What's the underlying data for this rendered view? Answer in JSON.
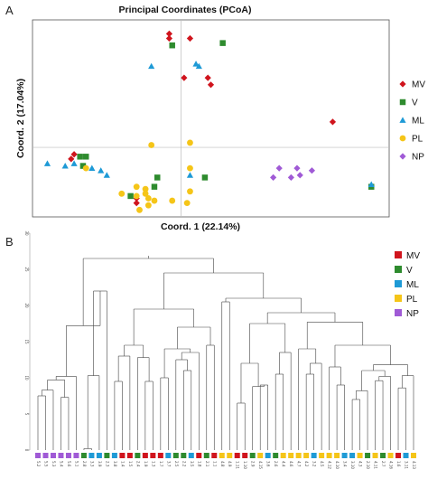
{
  "panel_a": {
    "letter": "A",
    "colors": {
      "MV": "#d0141d",
      "V": "#2e8b2e",
      "ML": "#1e9ad6",
      "PL": "#f5c518",
      "NP": "#a05ad6"
    },
    "chart_data": {
      "type": "scatter",
      "title": "Principal Coordinates (PCoA)",
      "xlabel": "Coord. 1 (22.14%)",
      "ylabel": "Coord. 2 (17.04%)",
      "xlim": [
        -0.5,
        0.7
      ],
      "ylim": [
        -0.3,
        0.55
      ],
      "grid": false,
      "legend_position": "right",
      "series": [
        {
          "name": "MV",
          "marker": "diamond",
          "points": [
            [
              -0.04,
              0.49
            ],
            [
              -0.04,
              0.47
            ],
            [
              0.03,
              0.47
            ],
            [
              0.01,
              0.3
            ],
            [
              0.09,
              0.3
            ],
            [
              0.1,
              0.27
            ],
            [
              0.51,
              0.11
            ],
            [
              -0.36,
              -0.03
            ],
            [
              -0.37,
              -0.05
            ],
            [
              -0.15,
              -0.22
            ],
            [
              -0.15,
              -0.24
            ]
          ]
        },
        {
          "name": "V",
          "marker": "square",
          "points": [
            [
              -0.03,
              0.44
            ],
            [
              0.14,
              0.45
            ],
            [
              -0.34,
              -0.04
            ],
            [
              -0.32,
              -0.04
            ],
            [
              -0.33,
              -0.08
            ],
            [
              -0.17,
              -0.21
            ],
            [
              -0.09,
              -0.17
            ],
            [
              -0.08,
              -0.13
            ],
            [
              0.08,
              -0.13
            ],
            [
              0.64,
              -0.17
            ]
          ]
        },
        {
          "name": "ML",
          "marker": "triangle",
          "points": [
            [
              -0.1,
              0.35
            ],
            [
              0.05,
              0.36
            ],
            [
              0.06,
              0.35
            ],
            [
              -0.45,
              -0.07
            ],
            [
              -0.39,
              -0.08
            ],
            [
              -0.36,
              -0.07
            ],
            [
              -0.3,
              -0.09
            ],
            [
              -0.27,
              -0.1
            ],
            [
              -0.25,
              -0.12
            ],
            [
              0.03,
              -0.12
            ],
            [
              0.64,
              -0.16
            ]
          ]
        },
        {
          "name": "PL",
          "marker": "circle",
          "points": [
            [
              -0.1,
              0.01
            ],
            [
              0.03,
              0.02
            ],
            [
              -0.32,
              -0.09
            ],
            [
              0.03,
              -0.09
            ],
            [
              -0.2,
              -0.2
            ],
            [
              -0.15,
              -0.17
            ],
            [
              -0.12,
              -0.18
            ],
            [
              -0.12,
              -0.2
            ],
            [
              -0.15,
              -0.21
            ],
            [
              -0.11,
              -0.22
            ],
            [
              -0.09,
              -0.23
            ],
            [
              -0.03,
              -0.23
            ],
            [
              0.03,
              -0.19
            ],
            [
              0.02,
              -0.24
            ],
            [
              -0.11,
              -0.25
            ],
            [
              -0.14,
              -0.27
            ]
          ]
        },
        {
          "name": "NP",
          "marker": "diamond",
          "points": [
            [
              0.33,
              -0.09
            ],
            [
              0.39,
              -0.09
            ],
            [
              0.44,
              -0.1
            ],
            [
              0.31,
              -0.13
            ],
            [
              0.37,
              -0.13
            ],
            [
              0.4,
              -0.12
            ]
          ]
        }
      ]
    }
  },
  "panel_b": {
    "letter": "B",
    "chart_data": {
      "type": "dendrogram",
      "ylim": [
        0,
        30
      ],
      "yticks": [
        0,
        5,
        10,
        15,
        20,
        25,
        30
      ],
      "legend_position": "top-right",
      "groups": [
        "MV",
        "V",
        "ML",
        "PL",
        "NP"
      ],
      "leaves": [
        {
          "label": "5.2",
          "group": "NP"
        },
        {
          "label": "5.5",
          "group": "NP"
        },
        {
          "label": "5.3",
          "group": "NP"
        },
        {
          "label": "5.4",
          "group": "NP"
        },
        {
          "label": "5.6",
          "group": "NP"
        },
        {
          "label": "5.1",
          "group": "NP"
        },
        {
          "label": "2.8",
          "group": "V"
        },
        {
          "label": "3.3",
          "group": "ML"
        },
        {
          "label": "3.9",
          "group": "ML"
        },
        {
          "label": "2.3",
          "group": "V"
        },
        {
          "label": "3.8",
          "group": "ML"
        },
        {
          "label": "1.4",
          "group": "MV"
        },
        {
          "label": "1.5",
          "group": "MV"
        },
        {
          "label": "2.4",
          "group": "V"
        },
        {
          "label": "1.9",
          "group": "MV"
        },
        {
          "label": "1.3",
          "group": "MV"
        },
        {
          "label": "1.7",
          "group": "MV"
        },
        {
          "label": "3.7",
          "group": "ML"
        },
        {
          "label": "2.5",
          "group": "V"
        },
        {
          "label": "2.2",
          "group": "V"
        },
        {
          "label": "3.5",
          "group": "ML"
        },
        {
          "label": "1.8",
          "group": "MV"
        },
        {
          "label": "2.1",
          "group": "V"
        },
        {
          "label": "1.1",
          "group": "MV"
        },
        {
          "label": "4.8",
          "group": "PL"
        },
        {
          "label": "4.9",
          "group": "PL"
        },
        {
          "label": "1.11",
          "group": "MV"
        },
        {
          "label": "1.10",
          "group": "MV"
        },
        {
          "label": "2.9",
          "group": "V"
        },
        {
          "label": "4.15",
          "group": "PL"
        },
        {
          "label": "3.6",
          "group": "ML"
        },
        {
          "label": "2.6",
          "group": "V"
        },
        {
          "label": "4.4",
          "group": "PL"
        },
        {
          "label": "4.6",
          "group": "PL"
        },
        {
          "label": "4.7",
          "group": "PL"
        },
        {
          "label": "4.2",
          "group": "PL"
        },
        {
          "label": "3.2",
          "group": "ML"
        },
        {
          "label": "4.5",
          "group": "PL"
        },
        {
          "label": "4.12",
          "group": "PL"
        },
        {
          "label": "4.10",
          "group": "PL"
        },
        {
          "label": "3.4",
          "group": "ML"
        },
        {
          "label": "3.10",
          "group": "ML"
        },
        {
          "label": "4.3",
          "group": "PL"
        },
        {
          "label": "2.10",
          "group": "V"
        },
        {
          "label": "4.11",
          "group": "PL"
        },
        {
          "label": "2.7",
          "group": "V"
        },
        {
          "label": "4.16",
          "group": "PL"
        },
        {
          "label": "1.6",
          "group": "MV"
        },
        {
          "label": "3.11",
          "group": "ML"
        },
        {
          "label": "4.13",
          "group": "PL"
        }
      ],
      "merges": [
        [
          0.0,
          [
            -1,
            -3
          ],
          0.0,
          [
            -4,
            -5
          ],
          0.0,
          [
            -7,
            -8
          ],
          0.0,
          [
            -9,
            -10
          ],
          0.0,
          [
            -11,
            -12
          ],
          0.0,
          [
            -13,
            -14
          ],
          0.0,
          [
            -15,
            -16
          ]
        ],
        []
      ]
    }
  }
}
